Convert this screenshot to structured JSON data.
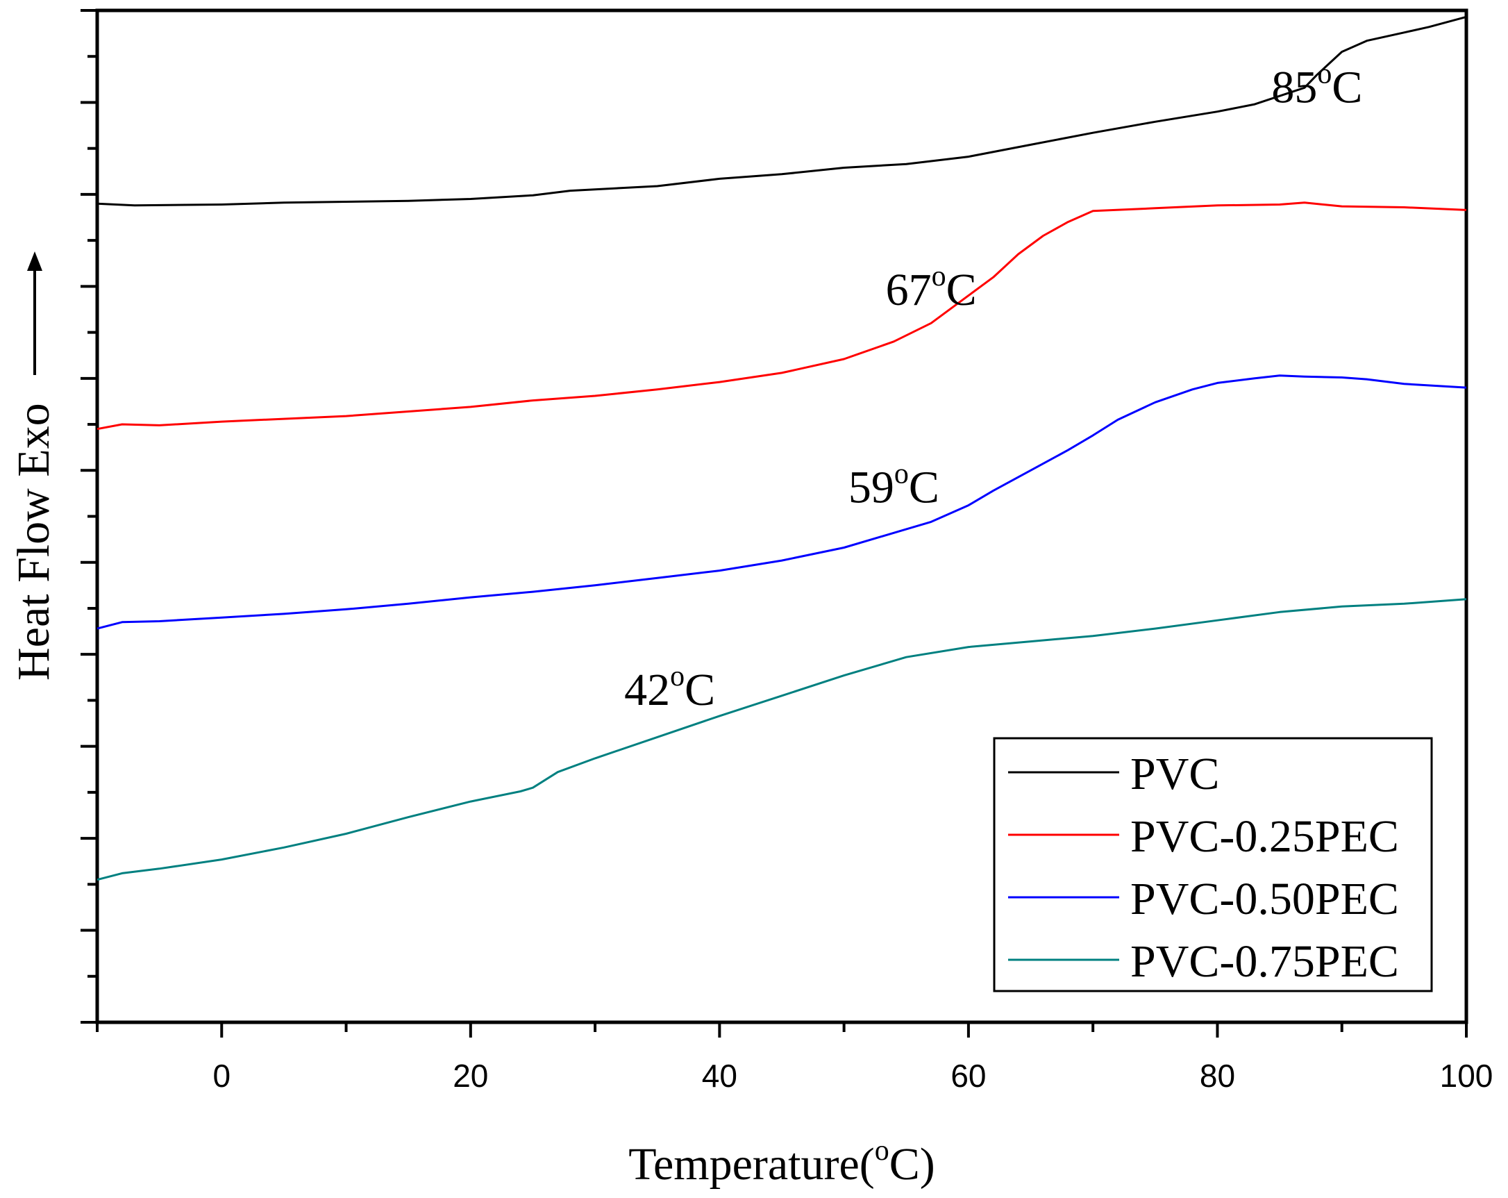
{
  "chart_data": {
    "type": "line",
    "title": "",
    "xlabel": "Temperature(°C)",
    "xlabel_parts": {
      "before": "Temperature(",
      "sup": "o",
      "after": "C)"
    },
    "ylabel": "Heat Flow Exo →",
    "ylabel_text": "Heat Flow Exo",
    "xlim": [
      -10,
      100
    ],
    "ylim": [
      0,
      11
    ],
    "x_ticks": [
      0,
      20,
      40,
      60,
      80,
      100
    ],
    "x_tick_labels": [
      "0",
      "20",
      "40",
      "60",
      "80",
      "100"
    ],
    "y_tick_labels_shown": false,
    "legend_position": "bottom-right",
    "series": [
      {
        "name": "PVC",
        "color": "#000000",
        "x": [
          -10,
          -7,
          0,
          5,
          10,
          15,
          20,
          25,
          28,
          35,
          40,
          45,
          50,
          55,
          60,
          65,
          70,
          75,
          80,
          83,
          85,
          87,
          88,
          90,
          92,
          95,
          97,
          100
        ],
        "y": [
          8.9,
          8.88,
          8.89,
          8.91,
          8.92,
          8.93,
          8.95,
          8.99,
          9.04,
          9.09,
          9.17,
          9.22,
          9.29,
          9.33,
          9.41,
          9.54,
          9.67,
          9.79,
          9.9,
          9.98,
          10.07,
          10.16,
          10.3,
          10.55,
          10.67,
          10.76,
          10.82,
          10.93
        ]
      },
      {
        "name": "PVC-0.25PEC",
        "color": "#ff0000",
        "x": [
          -10,
          -8,
          -5,
          0,
          5,
          10,
          15,
          20,
          25,
          30,
          35,
          40,
          45,
          50,
          54,
          57,
          60,
          62,
          64,
          66,
          68,
          70,
          75,
          80,
          85,
          87,
          90,
          95,
          100
        ],
        "y": [
          6.45,
          6.5,
          6.49,
          6.53,
          6.56,
          6.59,
          6.64,
          6.69,
          6.76,
          6.81,
          6.88,
          6.96,
          7.06,
          7.21,
          7.4,
          7.6,
          7.9,
          8.1,
          8.35,
          8.55,
          8.7,
          8.82,
          8.85,
          8.88,
          8.89,
          8.91,
          8.87,
          8.86,
          8.83
        ]
      },
      {
        "name": "PVC-0.50PEC",
        "color": "#0000ff",
        "x": [
          -10,
          -8,
          -5,
          0,
          5,
          10,
          15,
          20,
          25,
          30,
          35,
          40,
          45,
          50,
          53,
          57,
          60,
          62,
          65,
          68,
          70,
          72,
          75,
          78,
          80,
          83,
          85,
          87,
          90,
          92,
          95,
          100
        ],
        "y": [
          4.28,
          4.35,
          4.36,
          4.4,
          4.44,
          4.49,
          4.55,
          4.62,
          4.68,
          4.75,
          4.83,
          4.91,
          5.02,
          5.16,
          5.28,
          5.44,
          5.62,
          5.78,
          6.0,
          6.22,
          6.38,
          6.55,
          6.74,
          6.88,
          6.95,
          7.0,
          7.03,
          7.02,
          7.01,
          6.99,
          6.94,
          6.9
        ]
      },
      {
        "name": "PVC-0.75PEC",
        "color": "#008080",
        "x": [
          -10,
          -8,
          -5,
          0,
          5,
          10,
          15,
          20,
          24,
          25,
          27,
          30,
          35,
          40,
          45,
          50,
          55,
          60,
          65,
          70,
          75,
          80,
          85,
          90,
          95,
          100
        ],
        "y": [
          1.55,
          1.62,
          1.67,
          1.77,
          1.9,
          2.05,
          2.23,
          2.4,
          2.51,
          2.55,
          2.72,
          2.87,
          3.1,
          3.33,
          3.55,
          3.77,
          3.97,
          4.08,
          4.14,
          4.2,
          4.28,
          4.37,
          4.46,
          4.52,
          4.55,
          4.6
        ]
      }
    ],
    "annotations": [
      {
        "text": "85°C",
        "value": "85",
        "unit_sup": "o",
        "unit": "C",
        "series": "PVC",
        "x": 88,
        "y": 10.0
      },
      {
        "text": "67°C",
        "value": "67",
        "unit_sup": "o",
        "unit": "C",
        "series": "PVC-0.25PEC",
        "x": 57,
        "y": 7.8
      },
      {
        "text": "59°C",
        "value": "59",
        "unit_sup": "o",
        "unit": "C",
        "series": "PVC-0.50PEC",
        "x": 54,
        "y": 5.65
      },
      {
        "text": "42°C",
        "value": "42",
        "unit_sup": "o",
        "unit": "C",
        "series": "PVC-0.75PEC",
        "x": 36,
        "y": 3.45
      }
    ]
  }
}
